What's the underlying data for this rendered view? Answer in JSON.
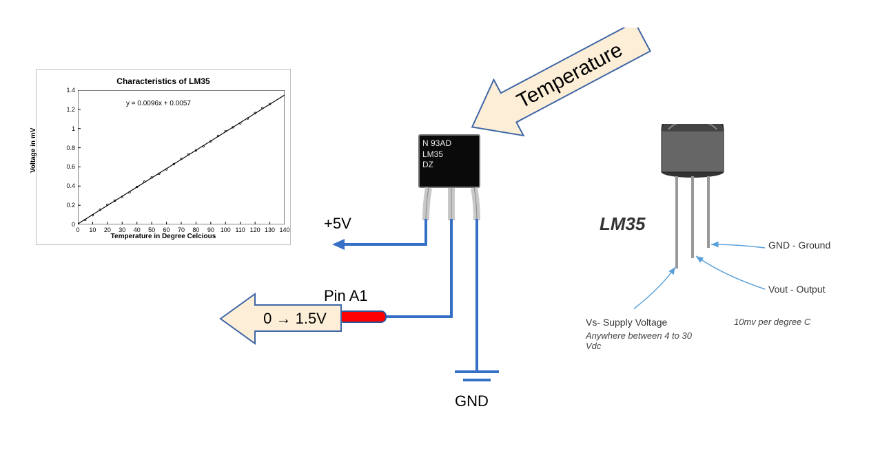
{
  "chart": {
    "type": "line",
    "title": "Characteristics of LM35",
    "equation": "y = 0.0096x + 0.0057",
    "xlabel": "Temperature in Degree Celcious",
    "ylabel": "Voltage in mV",
    "xlim": [
      0,
      140
    ],
    "ylim": [
      0,
      1.4
    ],
    "xticks": [
      0,
      10,
      20,
      30,
      40,
      50,
      60,
      70,
      80,
      90,
      100,
      110,
      120,
      130,
      140
    ],
    "yticks": [
      0,
      0.2,
      0.4,
      0.6,
      0.8,
      1,
      1.2,
      1.4
    ],
    "slope": 0.0096,
    "intercept": 0.0057,
    "line_color": "#000000",
    "border_color": "#bfbfbf",
    "background_color": "#ffffff",
    "font_title": 12,
    "font_label": 10,
    "font_tick": 9
  },
  "wiring": {
    "vcc_label": "+5V",
    "pin_label": "Pin A1",
    "gnd_label": "GND",
    "output_range": "0 → 1.5V",
    "temperature_label": "Temperature",
    "wire_color": "#3670c6",
    "wire_width": 4,
    "resistor_color": "#ff0000",
    "resistor_border": "#2f5597"
  },
  "chip": {
    "line1": "N 93AD",
    "line2": "LM35",
    "line3": "DZ",
    "body_color": "#0a0a0a",
    "text_color": "#e8e8e8"
  },
  "pinout": {
    "title": "LM35",
    "vs_label": "Vs- Supply Voltage",
    "vs_note": "Anywhere between 4 to 30 Vdc",
    "vout_label": "Vout - Output",
    "vout_note": "10mv per degree C",
    "gnd_label": "GND - Ground",
    "body_fill": "#555555",
    "body_stroke": "#222222",
    "lead_color": "#999999",
    "callout_color": "#5aa0d8"
  },
  "arrow_style": {
    "fill": "#fdeed7",
    "stroke": "#3e66a6",
    "stroke_width": 2
  }
}
